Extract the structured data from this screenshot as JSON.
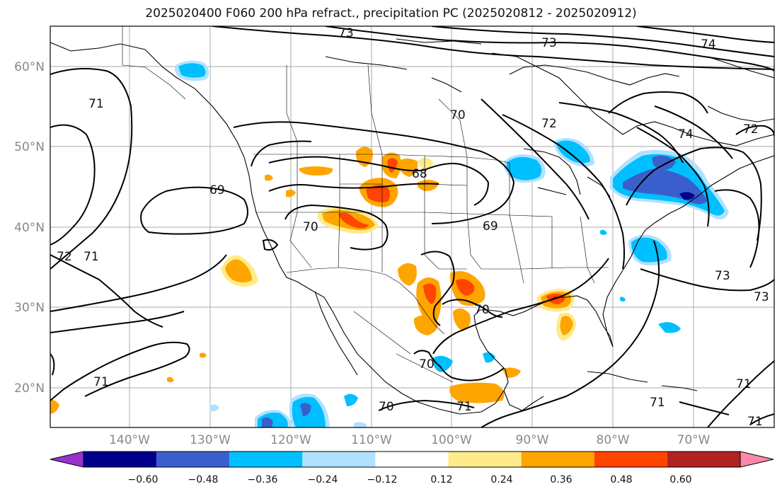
{
  "title": "2025020400 F060 200 hPa refract., precipitation PC (2025020812 - 2025020912)",
  "axes": {
    "lon_ticks": [
      "140°W",
      "130°W",
      "120°W",
      "110°W",
      "100°W",
      "90°W",
      "80°W",
      "70°W"
    ],
    "lat_ticks": [
      "60°N",
      "50°N",
      "40°N",
      "30°N",
      "20°N"
    ],
    "lon_range": [
      -150,
      -59
    ],
    "lat_range": [
      15,
      65
    ],
    "grid": true
  },
  "colorbar": {
    "ticks": [
      "−0.60",
      "−0.48",
      "−0.36",
      "−0.24",
      "−0.12",
      "0.12",
      "0.24",
      "0.36",
      "0.48",
      "0.60"
    ],
    "colors": [
      "#9932cc",
      "#00008b",
      "#3a5fcd",
      "#00bfff",
      "#b0e2ff",
      "#ffffff",
      "#ffeb8a",
      "#ffa500",
      "#ff4500",
      "#b22222",
      "#ff88aa"
    ]
  },
  "contour_labels": [
    "73",
    "73",
    "74",
    "72",
    "71",
    "69",
    "70",
    "68",
    "69",
    "70",
    "72",
    "73",
    "71",
    "70",
    "71",
    "73",
    "74",
    "72",
    "71",
    "71",
    "70",
    "70",
    "71",
    "71"
  ]
}
